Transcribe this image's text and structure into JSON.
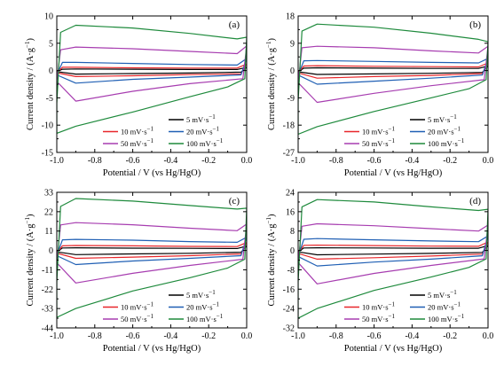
{
  "figure": {
    "ylabel_text": "Current density / (A·g",
    "ylabel_sup": "−1",
    "ylabel_close": ")",
    "xlabel": "Potential / V (vs Hg/HgO)"
  },
  "legend": [
    {
      "key": "5",
      "text": "5 mV·s",
      "sup": "−1",
      "color": "#000000",
      "dash": false
    },
    {
      "key": "10",
      "text": "10 mV·s",
      "sup": "−1",
      "color": "#e8262a",
      "dash": false
    },
    {
      "key": "20",
      "text": "20 mV·s",
      "sup": "−1",
      "color": "#1f5fb4",
      "dash": false
    },
    {
      "key": "50",
      "text": "50 mV·s",
      "sup": "−1",
      "color": "#a73db0",
      "dash": false
    },
    {
      "key": "100",
      "text": "100 mV·s",
      "sup": "−1",
      "color": "#1e8a3c",
      "dash": false
    }
  ],
  "chart_data": [
    {
      "type": "line",
      "panel": "(a)",
      "xlim": [
        -1.0,
        0.0
      ],
      "ylim": [
        -15,
        10
      ],
      "xticks": [
        -1.0,
        -0.8,
        -0.6,
        -0.4,
        -0.2,
        0.0
      ],
      "xtick_labels": [
        "-1.0",
        "-0.8",
        "-0.6",
        "-0.4",
        "-0.2",
        "0.0"
      ],
      "yticks": [
        -15,
        -10,
        -5,
        0,
        5,
        10
      ],
      "ytick_labels": [
        "-15",
        "-10",
        "-5",
        "0",
        "5",
        "10"
      ],
      "series": [
        {
          "key": "5",
          "x": [
            -1.0,
            -0.97,
            -0.9,
            -0.6,
            -0.3,
            -0.05,
            0.0,
            -0.03,
            -0.3,
            -0.6,
            -0.9,
            -1.0
          ],
          "y": [
            -0.2,
            0.25,
            0.3,
            0.25,
            0.2,
            0.2,
            0.6,
            -0.3,
            -0.45,
            -0.55,
            -0.65,
            -0.2
          ]
        },
        {
          "key": "10",
          "x": [
            -1.0,
            -0.97,
            -0.9,
            -0.6,
            -0.3,
            -0.05,
            0.0,
            -0.03,
            -0.3,
            -0.6,
            -0.9,
            -1.0
          ],
          "y": [
            -0.4,
            0.6,
            0.6,
            0.5,
            0.45,
            0.45,
            1.2,
            -0.6,
            -0.75,
            -0.95,
            -1.1,
            -0.4
          ]
        },
        {
          "key": "20",
          "x": [
            -1.0,
            -0.97,
            -0.9,
            -0.6,
            -0.3,
            -0.05,
            0.0,
            -0.03,
            -0.3,
            -0.6,
            -0.9,
            -1.0
          ],
          "y": [
            -0.8,
            1.5,
            1.5,
            1.3,
            1.1,
            1.0,
            2.2,
            -0.8,
            -1.2,
            -1.6,
            -2.3,
            -0.8
          ]
        },
        {
          "key": "50",
          "x": [
            -1.0,
            -0.98,
            -0.9,
            -0.6,
            -0.3,
            -0.05,
            0.0,
            -0.02,
            -0.3,
            -0.6,
            -0.9,
            -1.0
          ],
          "y": [
            -2.0,
            3.8,
            4.3,
            4.0,
            3.5,
            3.1,
            4.5,
            -1.5,
            -2.4,
            -3.8,
            -5.6,
            -2.0
          ]
        },
        {
          "key": "100",
          "x": [
            -1.0,
            -0.98,
            -0.9,
            -0.6,
            -0.3,
            -0.05,
            0.0,
            -0.01,
            -0.1,
            -0.3,
            -0.6,
            -0.9,
            -1.0
          ],
          "y": [
            -6.0,
            7.0,
            8.3,
            7.8,
            6.8,
            5.8,
            6.1,
            -1.5,
            -3.0,
            -4.8,
            -7.6,
            -10.2,
            -11.5
          ]
        }
      ]
    },
    {
      "type": "line",
      "panel": "(b)",
      "xlim": [
        -1.0,
        0.0
      ],
      "ylim": [
        -27,
        18
      ],
      "xticks": [
        -1.0,
        -0.8,
        -0.6,
        -0.4,
        -0.2,
        0.0
      ],
      "xtick_labels": [
        "-1.0",
        "-0.8",
        "-0.6",
        "-0.4",
        "-0.2",
        "0.0"
      ],
      "yticks": [
        -27,
        -18,
        -9,
        0,
        9,
        18
      ],
      "ytick_labels": [
        "-27",
        "-18",
        "-9",
        "0",
        "9",
        "18"
      ],
      "series": [
        {
          "key": "5",
          "x": [
            -1.0,
            -0.97,
            -0.9,
            -0.6,
            -0.3,
            -0.05,
            0.0,
            -0.03,
            -0.3,
            -0.6,
            -0.9,
            -1.0
          ],
          "y": [
            -0.4,
            0.8,
            0.9,
            0.8,
            0.7,
            0.7,
            1.5,
            -0.6,
            -0.9,
            -1.1,
            -1.3,
            -0.4
          ]
        },
        {
          "key": "10",
          "x": [
            -1.0,
            -0.97,
            -0.9,
            -0.6,
            -0.3,
            -0.05,
            0.0,
            -0.03,
            -0.3,
            -0.6,
            -0.9,
            -1.0
          ],
          "y": [
            -0.8,
            1.5,
            1.6,
            1.4,
            1.3,
            1.2,
            2.5,
            -1.0,
            -1.6,
            -2.0,
            -2.5,
            -0.8
          ]
        },
        {
          "key": "20",
          "x": [
            -1.0,
            -0.97,
            -0.9,
            -0.6,
            -0.3,
            -0.05,
            0.0,
            -0.03,
            -0.3,
            -0.6,
            -0.9,
            -1.0
          ],
          "y": [
            -1.5,
            3.2,
            3.3,
            3.0,
            2.7,
            2.5,
            4.0,
            -1.5,
            -2.5,
            -3.5,
            -4.5,
            -1.5
          ]
        },
        {
          "key": "50",
          "x": [
            -1.0,
            -0.98,
            -0.9,
            -0.6,
            -0.3,
            -0.05,
            0.0,
            -0.02,
            -0.3,
            -0.6,
            -0.9,
            -1.0
          ],
          "y": [
            -4.0,
            7.5,
            8.0,
            7.5,
            6.5,
            5.8,
            8.0,
            -3.0,
            -5.0,
            -7.5,
            -10.5,
            -4.0
          ]
        },
        {
          "key": "100",
          "x": [
            -1.0,
            -0.98,
            -0.9,
            -0.6,
            -0.3,
            -0.05,
            0.0,
            -0.01,
            -0.1,
            -0.3,
            -0.6,
            -0.9,
            -1.0
          ],
          "y": [
            -10.0,
            13.0,
            15.3,
            14.3,
            12.3,
            10.3,
            9.5,
            -3.0,
            -6.0,
            -9.0,
            -13.5,
            -18.5,
            -21.0
          ]
        }
      ]
    },
    {
      "type": "line",
      "panel": "(c)",
      "xlim": [
        -1.0,
        0.0
      ],
      "ylim": [
        -44,
        33
      ],
      "xticks": [
        -1.0,
        -0.8,
        -0.6,
        -0.4,
        -0.2,
        0.0
      ],
      "xtick_labels": [
        "-1.0",
        "-0.8",
        "-0.6",
        "-0.4",
        "-0.2",
        "0.0"
      ],
      "yticks": [
        -44,
        -33,
        -22,
        -11,
        0,
        11,
        22,
        33
      ],
      "ytick_labels": [
        "-44",
        "-33",
        "-22",
        "-11",
        "0",
        "11",
        "22",
        "33"
      ],
      "series": [
        {
          "key": "5",
          "x": [
            -1.0,
            -0.97,
            -0.9,
            -0.6,
            -0.3,
            -0.05,
            0.0,
            -0.03,
            -0.3,
            -0.6,
            -0.9,
            -1.0
          ],
          "y": [
            -0.8,
            1.4,
            1.5,
            1.3,
            1.2,
            1.1,
            2.5,
            -1.0,
            -1.6,
            -2.0,
            -2.4,
            -0.8
          ]
        },
        {
          "key": "10",
          "x": [
            -1.0,
            -0.97,
            -0.9,
            -0.6,
            -0.3,
            -0.05,
            0.0,
            -0.03,
            -0.3,
            -0.6,
            -0.9,
            -1.0
          ],
          "y": [
            -1.5,
            2.6,
            2.8,
            2.6,
            2.3,
            2.2,
            4.5,
            -2.0,
            -3.0,
            -3.8,
            -4.5,
            -1.5
          ]
        },
        {
          "key": "20",
          "x": [
            -1.0,
            -0.97,
            -0.9,
            -0.6,
            -0.3,
            -0.05,
            0.0,
            -0.03,
            -0.3,
            -0.6,
            -0.9,
            -1.0
          ],
          "y": [
            -3.0,
            6.0,
            6.3,
            5.8,
            5.0,
            4.6,
            7.5,
            -3.0,
            -4.5,
            -6.0,
            -8.0,
            -3.0
          ]
        },
        {
          "key": "50",
          "x": [
            -1.0,
            -0.98,
            -0.9,
            -0.6,
            -0.3,
            -0.05,
            0.0,
            -0.02,
            -0.3,
            -0.6,
            -0.9,
            -1.0
          ],
          "y": [
            -7.0,
            14.5,
            15.8,
            14.6,
            12.6,
            11.2,
            15.0,
            -5.0,
            -8.5,
            -13.0,
            -18.5,
            -7.0
          ]
        },
        {
          "key": "100",
          "x": [
            -1.0,
            -0.98,
            -0.9,
            -0.6,
            -0.3,
            -0.05,
            0.0,
            -0.01,
            -0.1,
            -0.3,
            -0.6,
            -0.9,
            -1.0
          ],
          "y": [
            -18.0,
            25.0,
            29.5,
            28.0,
            25.5,
            23.5,
            24.0,
            -5.0,
            -10.0,
            -15.5,
            -23.0,
            -33.0,
            -38.0
          ]
        }
      ]
    },
    {
      "type": "line",
      "panel": "(d)",
      "xlim": [
        -1.0,
        0.0
      ],
      "ylim": [
        -32,
        24
      ],
      "xticks": [
        -1.0,
        -0.8,
        -0.6,
        -0.4,
        -0.2,
        0.0
      ],
      "xtick_labels": [
        "-1.0",
        "-0.8",
        "-0.6",
        "-0.4",
        "-0.2",
        "0.0"
      ],
      "yticks": [
        -32,
        -24,
        -16,
        -8,
        0,
        8,
        16,
        24
      ],
      "ytick_labels": [
        "-32",
        "-24",
        "-16",
        "-8",
        "0",
        "8",
        "16",
        "24"
      ],
      "series": [
        {
          "key": "5",
          "x": [
            -1.0,
            -0.97,
            -0.9,
            -0.6,
            -0.3,
            -0.05,
            0.0,
            -0.03,
            -0.3,
            -0.6,
            -0.9,
            -1.0
          ],
          "y": [
            -0.6,
            1.0,
            1.1,
            1.0,
            0.9,
            0.9,
            2.0,
            -0.8,
            -1.2,
            -1.5,
            -1.8,
            -0.6
          ]
        },
        {
          "key": "10",
          "x": [
            -1.0,
            -0.97,
            -0.9,
            -0.6,
            -0.3,
            -0.05,
            0.0,
            -0.03,
            -0.3,
            -0.6,
            -0.9,
            -1.0
          ],
          "y": [
            -1.2,
            2.1,
            2.2,
            2.0,
            1.8,
            1.7,
            3.5,
            -1.5,
            -2.3,
            -3.0,
            -3.6,
            -1.2
          ]
        },
        {
          "key": "20",
          "x": [
            -1.0,
            -0.97,
            -0.9,
            -0.6,
            -0.3,
            -0.05,
            0.0,
            -0.03,
            -0.3,
            -0.6,
            -0.9,
            -1.0
          ],
          "y": [
            -2.5,
            4.6,
            4.9,
            4.4,
            3.9,
            3.6,
            6.0,
            -2.2,
            -3.6,
            -4.8,
            -6.4,
            -2.5
          ]
        },
        {
          "key": "50",
          "x": [
            -1.0,
            -0.98,
            -0.9,
            -0.6,
            -0.3,
            -0.05,
            0.0,
            -0.02,
            -0.3,
            -0.6,
            -0.9,
            -1.0
          ],
          "y": [
            -5.0,
            10.0,
            11.0,
            10.2,
            9.0,
            8.0,
            10.5,
            -3.5,
            -6.2,
            -9.5,
            -13.8,
            -5.0
          ]
        },
        {
          "key": "100",
          "x": [
            -1.0,
            -0.98,
            -0.9,
            -0.6,
            -0.3,
            -0.05,
            0.0,
            -0.01,
            -0.1,
            -0.3,
            -0.6,
            -0.9,
            -1.0
          ],
          "y": [
            -13.0,
            18.0,
            21.0,
            20.0,
            18.0,
            16.5,
            17.0,
            -3.5,
            -7.0,
            -11.0,
            -16.5,
            -24.0,
            -28.0
          ]
        }
      ]
    }
  ]
}
